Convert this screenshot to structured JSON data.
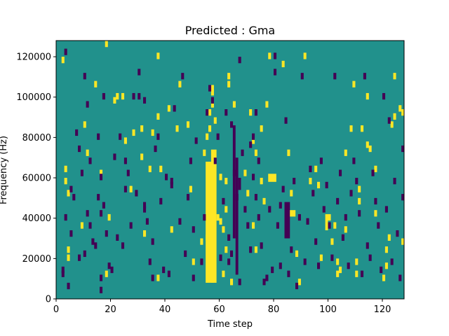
{
  "chart_data": {
    "type": "heatmap",
    "title": "Predicted : Gma",
    "xlabel": "Time step",
    "ylabel": "Frequency (Hz)",
    "xlim": [
      0,
      128
    ],
    "ylim": [
      0,
      128000
    ],
    "xticks": [
      0,
      20,
      40,
      60,
      80,
      100,
      120
    ],
    "yticks": [
      0,
      20000,
      40000,
      60000,
      80000,
      100000,
      120000
    ],
    "colors": {
      "background": "#21918c",
      "high": "#fde725",
      "low": "#440154"
    },
    "high_bands": [
      {
        "x0": 55,
        "x1": 58,
        "y0": 8000,
        "y1": 68000
      },
      {
        "x0": 57,
        "x1": 59,
        "y0": 8000,
        "y1": 74000
      },
      {
        "x0": 78,
        "x1": 81,
        "y0": 58000,
        "y1": 62000
      },
      {
        "x0": 99,
        "x1": 100,
        "y0": 34000,
        "y1": 42000
      }
    ],
    "low_bands": [
      {
        "x0": 65,
        "x1": 66,
        "y0": 30000,
        "y1": 86000
      },
      {
        "x0": 66,
        "x1": 67,
        "y0": 12000,
        "y1": 70000
      },
      {
        "x0": 84,
        "x1": 86,
        "y0": 30000,
        "y1": 48000
      },
      {
        "x0": 67,
        "x1": 68,
        "y0": 54000,
        "y1": 60000
      }
    ],
    "high_cells": [
      [
        2,
        118000
      ],
      [
        3,
        64000
      ],
      [
        3,
        58000
      ],
      [
        4,
        24000
      ],
      [
        4,
        52000
      ],
      [
        4,
        20000
      ],
      [
        9,
        36000
      ],
      [
        10,
        86000
      ],
      [
        11,
        72000
      ],
      [
        14,
        106000
      ],
      [
        16,
        62000
      ],
      [
        18,
        126000
      ],
      [
        18,
        12000
      ],
      [
        19,
        40000
      ],
      [
        21,
        98000
      ],
      [
        22,
        100000
      ],
      [
        24,
        100000
      ],
      [
        25,
        78000
      ],
      [
        27,
        54000
      ],
      [
        28,
        82000
      ],
      [
        31,
        84000
      ],
      [
        31,
        70000
      ],
      [
        32,
        32000
      ],
      [
        34,
        64000
      ],
      [
        35,
        82000
      ],
      [
        37,
        10000
      ],
      [
        37,
        90000
      ],
      [
        37,
        120000
      ],
      [
        38,
        64000
      ],
      [
        41,
        94000
      ],
      [
        42,
        34000
      ],
      [
        44,
        84000
      ],
      [
        45,
        106000
      ],
      [
        48,
        86000
      ],
      [
        49,
        54000
      ],
      [
        50,
        18000
      ],
      [
        53,
        28000
      ],
      [
        54,
        72000
      ],
      [
        55,
        80000
      ],
      [
        55,
        30000
      ],
      [
        56,
        84000
      ],
      [
        56,
        92000
      ],
      [
        57,
        104000
      ],
      [
        57,
        102000
      ],
      [
        57,
        44000
      ],
      [
        57,
        96000
      ],
      [
        58,
        88000
      ],
      [
        59,
        40000
      ],
      [
        60,
        60000
      ],
      [
        60,
        38000
      ],
      [
        61,
        34000
      ],
      [
        61,
        12000
      ],
      [
        62,
        58000
      ],
      [
        62,
        44000
      ],
      [
        62,
        24000
      ],
      [
        63,
        106000
      ],
      [
        63,
        110000
      ],
      [
        64,
        8000
      ],
      [
        65,
        96000
      ],
      [
        69,
        62000
      ],
      [
        70,
        52000
      ],
      [
        71,
        92000
      ],
      [
        72,
        36000
      ],
      [
        72,
        78000
      ],
      [
        73,
        24000
      ],
      [
        73,
        72000
      ],
      [
        75,
        58000
      ],
      [
        75,
        84000
      ],
      [
        76,
        48000
      ],
      [
        77,
        96000
      ],
      [
        78,
        120000
      ],
      [
        83,
        116000
      ],
      [
        85,
        72000
      ],
      [
        86,
        42000
      ],
      [
        86,
        52000
      ],
      [
        87,
        42000
      ],
      [
        88,
        22000
      ],
      [
        89,
        8000
      ],
      [
        91,
        120000
      ],
      [
        93,
        58000
      ],
      [
        95,
        64000
      ],
      [
        96,
        56000
      ],
      [
        97,
        20000
      ],
      [
        100,
        40000
      ],
      [
        101,
        28000
      ],
      [
        102,
        36000
      ],
      [
        103,
        12000
      ],
      [
        103,
        18000
      ],
      [
        104,
        14000
      ],
      [
        106,
        72000
      ],
      [
        106,
        34000
      ],
      [
        108,
        84000
      ],
      [
        109,
        106000
      ],
      [
        110,
        12000
      ],
      [
        110,
        18000
      ],
      [
        111,
        54000
      ],
      [
        111,
        48000
      ],
      [
        112,
        84000
      ],
      [
        114,
        100000
      ],
      [
        114,
        76000
      ],
      [
        115,
        74000
      ],
      [
        117,
        64000
      ],
      [
        117,
        42000
      ],
      [
        120,
        10000
      ],
      [
        121,
        24000
      ],
      [
        121,
        16000
      ],
      [
        122,
        30000
      ],
      [
        123,
        86000
      ],
      [
        124,
        90000
      ],
      [
        124,
        110000
      ],
      [
        126,
        94000
      ],
      [
        127,
        28000
      ],
      [
        127,
        92000
      ]
    ],
    "low_cells": [
      [
        2,
        12000
      ],
      [
        2,
        14000
      ],
      [
        3,
        122000
      ],
      [
        3,
        40000
      ],
      [
        4,
        6000
      ],
      [
        5,
        54000
      ],
      [
        5,
        32000
      ],
      [
        6,
        50000
      ],
      [
        7,
        82000
      ],
      [
        8,
        20000
      ],
      [
        8,
        74000
      ],
      [
        9,
        62000
      ],
      [
        10,
        22000
      ],
      [
        10,
        110000
      ],
      [
        11,
        96000
      ],
      [
        11,
        42000
      ],
      [
        12,
        68000
      ],
      [
        12,
        36000
      ],
      [
        13,
        28000
      ],
      [
        14,
        26000
      ],
      [
        15,
        50000
      ],
      [
        15,
        80000
      ],
      [
        16,
        60000
      ],
      [
        16,
        4000
      ],
      [
        16,
        10000
      ],
      [
        16,
        42000
      ],
      [
        17,
        46000
      ],
      [
        17,
        100000
      ],
      [
        18,
        32000
      ],
      [
        19,
        16000
      ],
      [
        20,
        14000
      ],
      [
        21,
        70000
      ],
      [
        22,
        30000
      ],
      [
        23,
        80000
      ],
      [
        24,
        26000
      ],
      [
        25,
        68000
      ],
      [
        25,
        54000
      ],
      [
        26,
        62000
      ],
      [
        27,
        36000
      ],
      [
        28,
        100000
      ],
      [
        29,
        52000
      ],
      [
        30,
        100000
      ],
      [
        30,
        112000
      ],
      [
        32,
        46000
      ],
      [
        32,
        44000
      ],
      [
        32,
        98000
      ],
      [
        33,
        38000
      ],
      [
        34,
        18000
      ],
      [
        35,
        10000
      ],
      [
        35,
        28000
      ],
      [
        36,
        74000
      ],
      [
        37,
        80000
      ],
      [
        38,
        48000
      ],
      [
        39,
        14000
      ],
      [
        40,
        60000
      ],
      [
        41,
        12000
      ],
      [
        42,
        56000
      ],
      [
        42,
        58000
      ],
      [
        43,
        94000
      ],
      [
        45,
        38000
      ],
      [
        46,
        110000
      ],
      [
        47,
        22000
      ],
      [
        48,
        50000
      ],
      [
        49,
        68000
      ],
      [
        50,
        34000
      ],
      [
        50,
        10000
      ],
      [
        51,
        78000
      ],
      [
        53,
        18000
      ],
      [
        54,
        40000
      ],
      [
        55,
        92000
      ],
      [
        56,
        104000
      ],
      [
        57,
        98000
      ],
      [
        58,
        68000
      ],
      [
        59,
        80000
      ],
      [
        60,
        20000
      ],
      [
        61,
        48000
      ],
      [
        62,
        92000
      ],
      [
        63,
        30000
      ],
      [
        63,
        18000
      ],
      [
        64,
        86000
      ],
      [
        64,
        22000
      ],
      [
        65,
        62000
      ],
      [
        66,
        50000
      ],
      [
        67,
        118000
      ],
      [
        67,
        8000
      ],
      [
        68,
        72000
      ],
      [
        69,
        44000
      ],
      [
        70,
        36000
      ],
      [
        71,
        24000
      ],
      [
        71,
        76000
      ],
      [
        72,
        80000
      ],
      [
        72,
        60000
      ],
      [
        73,
        92000
      ],
      [
        73,
        50000
      ],
      [
        74,
        68000
      ],
      [
        74,
        40000
      ],
      [
        75,
        26000
      ],
      [
        76,
        8000
      ],
      [
        77,
        10000
      ],
      [
        78,
        44000
      ],
      [
        79,
        14000
      ],
      [
        80,
        112000
      ],
      [
        80,
        120000
      ],
      [
        81,
        36000
      ],
      [
        82,
        16000
      ],
      [
        82,
        46000
      ],
      [
        83,
        54000
      ],
      [
        84,
        88000
      ],
      [
        85,
        12000
      ],
      [
        86,
        24000
      ],
      [
        87,
        58000
      ],
      [
        88,
        6000
      ],
      [
        89,
        40000
      ],
      [
        90,
        110000
      ],
      [
        91,
        18000
      ],
      [
        92,
        38000
      ],
      [
        93,
        64000
      ],
      [
        94,
        52000
      ],
      [
        95,
        28000
      ],
      [
        96,
        16000
      ],
      [
        97,
        68000
      ],
      [
        98,
        44000
      ],
      [
        99,
        56000
      ],
      [
        100,
        36000
      ],
      [
        101,
        20000
      ],
      [
        102,
        110000
      ],
      [
        103,
        48000
      ],
      [
        104,
        62000
      ],
      [
        105,
        30000
      ],
      [
        106,
        40000
      ],
      [
        107,
        16000
      ],
      [
        108,
        52000
      ],
      [
        109,
        68000
      ],
      [
        110,
        58000
      ],
      [
        111,
        42000
      ],
      [
        112,
        12000
      ],
      [
        113,
        110000
      ],
      [
        114,
        26000
      ],
      [
        115,
        20000
      ],
      [
        116,
        62000
      ],
      [
        117,
        48000
      ],
      [
        118,
        36000
      ],
      [
        119,
        14000
      ],
      [
        120,
        100000
      ],
      [
        121,
        44000
      ],
      [
        122,
        88000
      ],
      [
        123,
        18000
      ],
      [
        124,
        58000
      ],
      [
        125,
        32000
      ],
      [
        126,
        10000
      ],
      [
        127,
        50000
      ],
      [
        127,
        74000
      ]
    ]
  }
}
